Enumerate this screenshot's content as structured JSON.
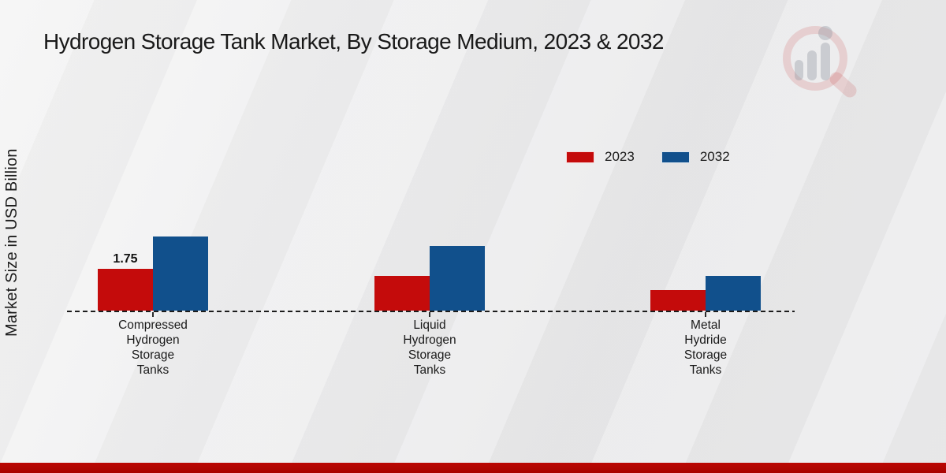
{
  "page": {
    "title": "Hydrogen Storage Tank Market, By Storage Medium, 2023 & 2032",
    "y_axis_label": "Market Size in USD Billion",
    "watermark_icon": "magnifier-bar-chart-logo"
  },
  "colors": {
    "series_2023_red": "#c40b0b",
    "series_2032_blue": "#11508c",
    "footer_accent_red": "#b20500",
    "text": "#1a1a1a"
  },
  "chart_data": {
    "type": "bar",
    "title": "Hydrogen Storage Tank Market, By Storage Medium, 2023 & 2032",
    "xlabel": "",
    "ylabel": "Market Size in USD Billion",
    "categories": [
      "Compressed\nHydrogen\nStorage\nTanks",
      "Liquid\nHydrogen\nStorage\nTanks",
      "Metal\nHydride\nStorage\nTanks"
    ],
    "series": [
      {
        "name": "2023",
        "color": "#c40b0b",
        "values": [
          1.75,
          1.45,
          0.85
        ],
        "value_labels": [
          "1.75",
          null,
          null
        ]
      },
      {
        "name": "2032",
        "color": "#11508c",
        "values": [
          3.1,
          2.7,
          1.45
        ],
        "value_labels": [
          null,
          null,
          null
        ]
      }
    ],
    "ylim": [
      0,
      8.5
    ],
    "grid": false,
    "y_tick_labels_visible": false,
    "legend_position": "upper-right-inside",
    "baseline_style": "dashed"
  }
}
